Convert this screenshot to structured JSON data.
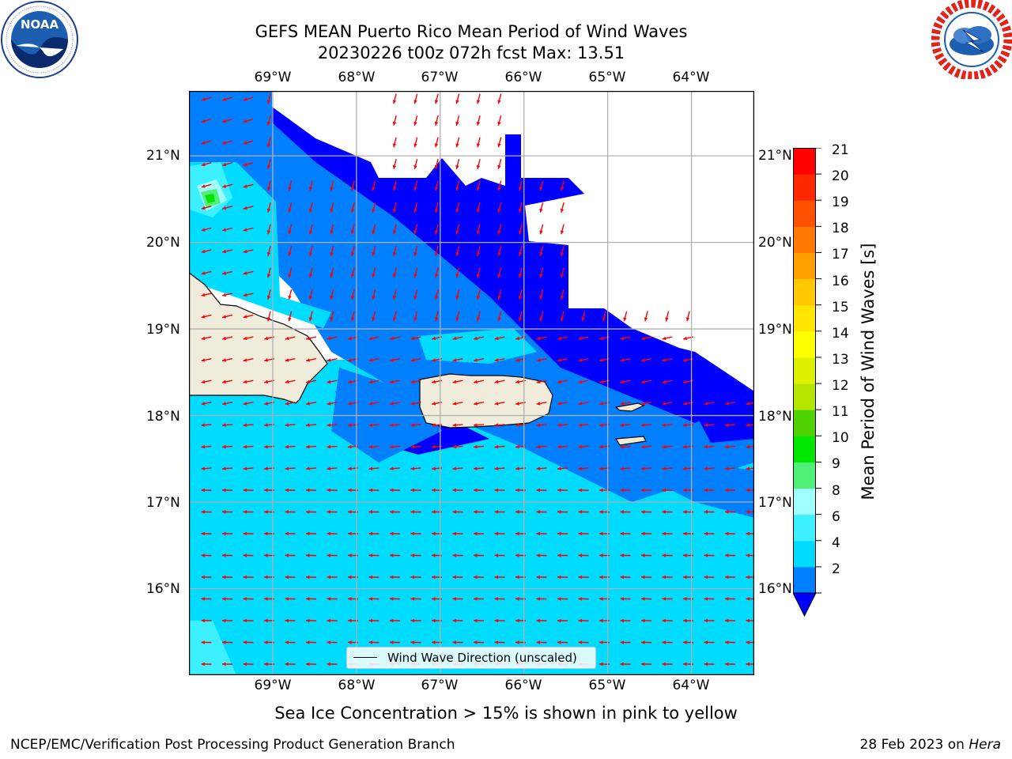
{
  "header": {
    "title_line1": "GEFS MEAN Puerto Rico Mean Period of Wind Waves",
    "title_line2": "20230226 t00z 072h fcst   Max: 13.51"
  },
  "logos": {
    "left": {
      "name": "NOAA",
      "text": "NOAA",
      "ring_text": "NATIONAL OCEANIC AND ATMOSPHERIC ADMINISTRATION · U.S. DEPARTMENT OF COMMERCE"
    },
    "right": {
      "name": "National Weather Service",
      "ring_text": "NATIONAL WEATHER SERVICE"
    }
  },
  "map": {
    "lon_labels": [
      "69°W",
      "68°W",
      "67°W",
      "66°W",
      "65°W",
      "64°W"
    ],
    "lat_labels": [
      "21°N",
      "20°N",
      "19°N",
      "18°N",
      "17°N",
      "16°N"
    ],
    "lon_values": [
      -69,
      -68,
      -67,
      -66,
      -65,
      -64
    ],
    "lat_values": [
      21,
      20,
      19,
      18,
      17,
      16
    ],
    "extent": {
      "lon_min": -70,
      "lon_max": -63.25,
      "lat_min": 15,
      "lat_max": 21.75
    },
    "arrow_color": "#ff0000",
    "land_color": "#efecdc",
    "legend_label": "Wind Wave Direction (unscaled)"
  },
  "colorbar": {
    "title": "Mean Period of Wind Waves [s]",
    "levels": [
      2,
      4,
      6,
      8,
      9,
      10,
      11,
      12,
      13,
      14,
      15,
      16,
      17,
      18,
      19,
      20,
      21
    ],
    "tick_labels": [
      "21",
      "20",
      "19",
      "18",
      "17",
      "16",
      "15",
      "14",
      "13",
      "12",
      "11",
      "10",
      "9",
      "8",
      "6",
      "4",
      "2"
    ],
    "colors": [
      "#0080ff",
      "#00dcff",
      "#3cf0ff",
      "#a0ffff",
      "#50f078",
      "#00e600",
      "#50d200",
      "#b4e600",
      "#dcf000",
      "#ffff00",
      "#ffe600",
      "#ffc800",
      "#ffa000",
      "#ff7800",
      "#ff5000",
      "#ff2800",
      "#ff0000"
    ],
    "extend_color": "#0000ff"
  },
  "notes": {
    "sea_ice": "Sea Ice Concentration > 15% is shown in pink to yellow"
  },
  "footer": {
    "left": "NCEP/EMC/Verification Post Processing Product Generation Branch",
    "right_date": "28 Feb 2023 on ",
    "right_machine": "Hera"
  }
}
